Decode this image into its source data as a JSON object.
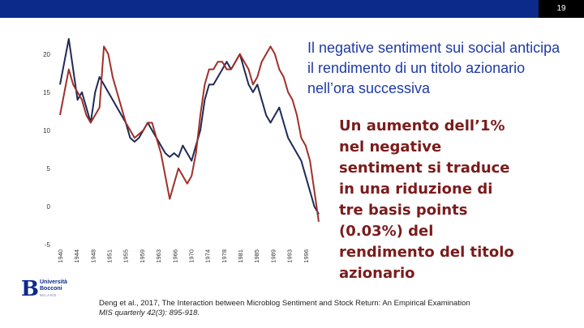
{
  "slide": {
    "page_number": "19"
  },
  "headline": "Il negative sentiment sui social anticipa il rendimento di un titolo azionario nell’ora successiva",
  "statement": "Un aumento dell’1% nel negative sentiment si traduce in una riduzione di tre basis points (0.03%) del rendimento del titolo azionario",
  "logo": {
    "initial": "B",
    "line1": "Università",
    "line2": "Bocconi",
    "line3": "MILANO"
  },
  "citation": {
    "line1": "Deng et al., 2017, The Interaction between Microblog Sentiment and Stock Return: An Empirical Examination",
    "line2": "MIS quarterly 42(3): 895-918."
  },
  "colors": {
    "brand": "#0b2a8a",
    "headline": "#1f3aa6",
    "statement": "#7b1b1b",
    "series_blue": "#1f2a55",
    "series_red": "#a0302a"
  },
  "chart_data": {
    "type": "line",
    "title": "",
    "xlabel": "",
    "ylabel": "",
    "ylim": [
      -5,
      22
    ],
    "yticks": [
      "20",
      "15",
      "10",
      "5",
      "0",
      "-5"
    ],
    "ytick_values": [
      20,
      15,
      10,
      5,
      0,
      -5
    ],
    "xticks": [
      "1940",
      "1944",
      "1948",
      "1951",
      "1955",
      "1959",
      "1963",
      "1966",
      "1970",
      "1974",
      "1978",
      "1981",
      "1985",
      "1989",
      "1993",
      "1996"
    ],
    "xlim": [
      1940,
      1999
    ],
    "grid": false,
    "legend": "none",
    "x": [
      1940,
      1941,
      1942,
      1943,
      1944,
      1945,
      1946,
      1947,
      1948,
      1949,
      1950,
      1951,
      1952,
      1953,
      1954,
      1955,
      1956,
      1957,
      1958,
      1959,
      1960,
      1961,
      1962,
      1963,
      1964,
      1965,
      1966,
      1967,
      1968,
      1969,
      1970,
      1971,
      1972,
      1973,
      1974,
      1975,
      1976,
      1977,
      1978,
      1979,
      1980,
      1981,
      1982,
      1983,
      1984,
      1985,
      1986,
      1987,
      1988,
      1989,
      1990,
      1991,
      1992,
      1993,
      1994,
      1995,
      1996,
      1997,
      1998,
      1999
    ],
    "series": [
      {
        "values": [
          16,
          19,
          22,
          18,
          14,
          15,
          13,
          11,
          15,
          17,
          16,
          15,
          14,
          13,
          12,
          11,
          9,
          8.5,
          9,
          10,
          11,
          10,
          9,
          8,
          7,
          6.5,
          7,
          6.5,
          8,
          7,
          6,
          8,
          10,
          14,
          16,
          16,
          17,
          18,
          19,
          18,
          19,
          20,
          18,
          16,
          15,
          16,
          14,
          12,
          11,
          12,
          13,
          11,
          9,
          8,
          7,
          6,
          4,
          2,
          0,
          -1
        ]
      },
      {
        "values": [
          12,
          15,
          18,
          16,
          15,
          14,
          12,
          11,
          12,
          13,
          21,
          20,
          17,
          15,
          13,
          11,
          10,
          9,
          9.5,
          10,
          11,
          11,
          9,
          7,
          4,
          1,
          3,
          5,
          4,
          3,
          4,
          7,
          12,
          16,
          18,
          18,
          19,
          19,
          18,
          18,
          19,
          20,
          19,
          18,
          16,
          17,
          19,
          20,
          21,
          20,
          18,
          17,
          15,
          14,
          12,
          9,
          8,
          6,
          2,
          -2
        ]
      }
    ]
  }
}
